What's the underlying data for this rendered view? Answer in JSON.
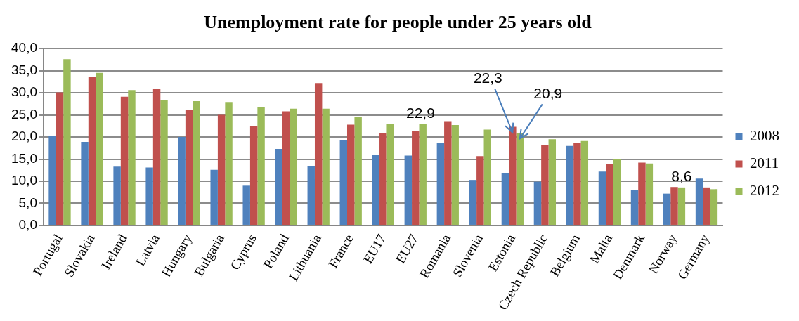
{
  "chart_data": {
    "type": "bar",
    "title": "Unemployment rate for people under 25 years old",
    "categories": [
      "Portugal",
      "Slovakia",
      "Ireland",
      "Latvia",
      "Hungary",
      "Bulgaria",
      "Cyprus",
      "Poland",
      "Lithuania",
      "France",
      "EU17",
      "EU27",
      "Romania",
      "Slovenia",
      "Estonia",
      "Czech Republic",
      "Belgium",
      "Malta",
      "Denmark",
      "Norway",
      "Germany"
    ],
    "series": [
      {
        "name": "2008",
        "color": "#4f81bd",
        "values": [
          20.3,
          18.9,
          13.3,
          13.1,
          20.0,
          12.6,
          9.0,
          17.3,
          13.4,
          19.3,
          16.0,
          15.8,
          18.6,
          10.3,
          11.9,
          9.9,
          18.0,
          12.2,
          8.0,
          7.2,
          10.6
        ]
      },
      {
        "name": "2011",
        "color": "#c0504d",
        "values": [
          30.1,
          33.6,
          29.1,
          30.9,
          26.1,
          25.0,
          22.4,
          25.8,
          32.2,
          22.8,
          20.8,
          21.4,
          23.6,
          15.7,
          22.3,
          18.1,
          18.7,
          13.8,
          14.2,
          8.7,
          8.6
        ]
      },
      {
        "name": "2012",
        "color": "#9bbb59",
        "values": [
          37.6,
          34.5,
          30.6,
          28.3,
          28.1,
          27.9,
          26.8,
          26.4,
          26.4,
          24.6,
          23.0,
          22.9,
          22.7,
          21.7,
          20.9,
          19.5,
          19.1,
          15.0,
          14.0,
          8.6,
          8.2
        ]
      }
    ],
    "ylim": [
      0,
      40
    ],
    "yticks": [
      {
        "value": 0,
        "label": "0,0"
      },
      {
        "value": 5,
        "label": "5,0"
      },
      {
        "value": 10,
        "label": "10,0"
      },
      {
        "value": 15,
        "label": "15,0"
      },
      {
        "value": 20,
        "label": "20,0"
      },
      {
        "value": 25,
        "label": "25,0"
      },
      {
        "value": 30,
        "label": "30,0"
      },
      {
        "value": 35,
        "label": "35,0"
      },
      {
        "value": 40,
        "label": "40,0"
      }
    ],
    "grid": "y",
    "legend": "right",
    "annotations": [
      "22,9",
      {
        "text": "22,3",
        "x": "Estonia",
        "y": 22.3
      },
      {
        "text": "20,9",
        "x": "Estonia",
        "y": 20.9
      },
      {
        "text": "8,6",
        "x": "Norway",
        "y": 8.6
      }
    ]
  }
}
